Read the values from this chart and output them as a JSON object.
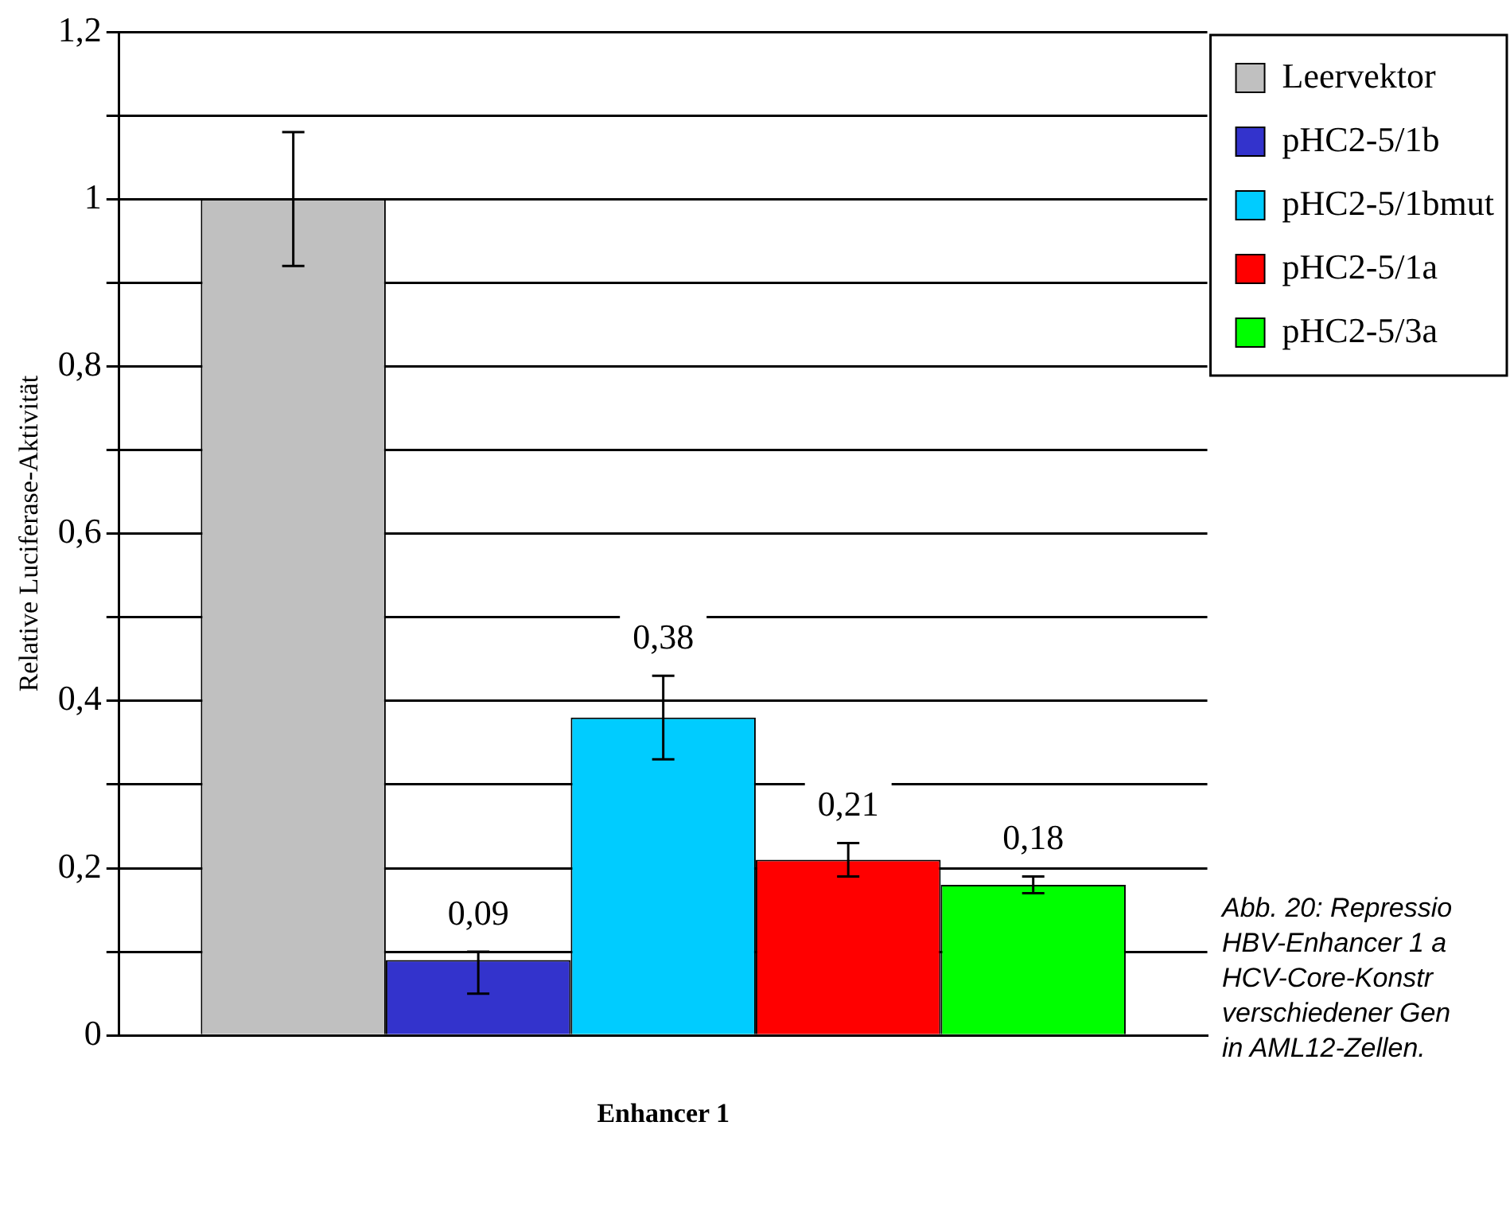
{
  "chart_data": {
    "type": "bar",
    "ylabel": "Relative Luciferase-Aktivität",
    "categories": [
      "Enhancer 1"
    ],
    "series": [
      {
        "name": "Leervektor",
        "color": "#c0c0c0",
        "values": [
          1
        ],
        "errors": [
          [
            0.92,
            1.08
          ]
        ],
        "value_labels": [
          null
        ]
      },
      {
        "name": "pHC2-5/1b",
        "color": "#3333cc",
        "values": [
          0.09
        ],
        "errors": [
          [
            0.05,
            0.1
          ]
        ],
        "value_labels": [
          "0,09"
        ]
      },
      {
        "name": "pHC2-5/1bmut",
        "color": "#00ccff",
        "values": [
          0.38
        ],
        "errors": [
          [
            0.33,
            0.43
          ]
        ],
        "value_labels": [
          "0,38"
        ]
      },
      {
        "name": "pHC2-5/1a",
        "color": "#ff0000",
        "values": [
          0.21
        ],
        "errors": [
          [
            0.19,
            0.23
          ]
        ],
        "value_labels": [
          "0,21"
        ]
      },
      {
        "name": "pHC2-5/3a",
        "color": "#00ff00",
        "values": [
          0.18
        ],
        "errors": [
          [
            0.17,
            0.19
          ]
        ],
        "value_labels": [
          "0,18"
        ]
      }
    ],
    "ylim": [
      0,
      1.2
    ],
    "yticks": [
      {
        "value": 0,
        "label": "0"
      },
      {
        "value": 0.1,
        "label": null
      },
      {
        "value": 0.2,
        "label": "0,2"
      },
      {
        "value": 0.3,
        "label": null
      },
      {
        "value": 0.4,
        "label": "0,4"
      },
      {
        "value": 0.5,
        "label": null
      },
      {
        "value": 0.6,
        "label": "0,6"
      },
      {
        "value": 0.7,
        "label": null
      },
      {
        "value": 0.8,
        "label": "0,8"
      },
      {
        "value": 0.9,
        "label": null
      },
      {
        "value": 1,
        "label": "1"
      },
      {
        "value": 1.1,
        "label": null
      },
      {
        "value": 1.2,
        "label": "1,2"
      }
    ],
    "grid": "y",
    "legend": "top right",
    "annotations": [
      "Abb. 20: Repressio\nHBV-Enhancer 1 a\nHCV-Core-Konstr\nverschiedener Gen\nin AML12-Zellen."
    ]
  }
}
